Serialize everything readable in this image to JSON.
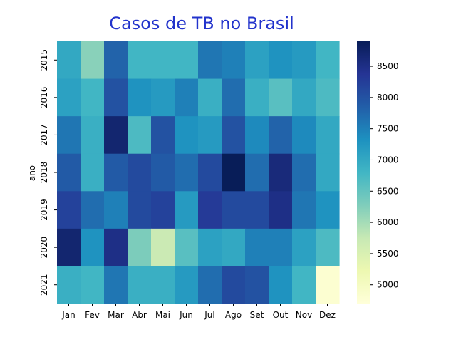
{
  "chart_data": {
    "type": "heatmap",
    "title": "Casos de TB no Brasil",
    "title_color": "#2233cc",
    "xlabel": "",
    "ylabel": "ano",
    "columns": [
      "Jan",
      "Fev",
      "Mar",
      "Abr",
      "Mai",
      "Jun",
      "Jul",
      "Ago",
      "Set",
      "Out",
      "Nov",
      "Dez"
    ],
    "rows": [
      "2015",
      "2016",
      "2017",
      "2018",
      "2019",
      "2020",
      "2021"
    ],
    "values": [
      [
        7000,
        6200,
        7800,
        6800,
        6800,
        6800,
        7600,
        7500,
        7100,
        7300,
        7200,
        6800
      ],
      [
        7100,
        6800,
        8000,
        7300,
        7200,
        7500,
        6900,
        7700,
        6900,
        6600,
        7000,
        6700
      ],
      [
        7600,
        6900,
        8700,
        6700,
        8000,
        7300,
        7200,
        8000,
        7400,
        7800,
        7400,
        7000
      ],
      [
        7900,
        6900,
        7900,
        8100,
        7900,
        7700,
        8100,
        8900,
        7700,
        8600,
        7700,
        7000
      ],
      [
        8200,
        7700,
        7500,
        8100,
        8200,
        7200,
        8300,
        8100,
        8100,
        8500,
        7600,
        7300
      ],
      [
        8700,
        7300,
        8500,
        6300,
        5700,
        6600,
        7100,
        7000,
        7500,
        7500,
        7100,
        6700
      ],
      [
        6900,
        6800,
        7600,
        6900,
        6900,
        7200,
        7700,
        8100,
        8000,
        7300,
        6800,
        4800
      ]
    ],
    "colorbar": {
      "min": 4700,
      "max": 8900,
      "ticks": [
        5000,
        5500,
        6000,
        6500,
        7000,
        7500,
        8000,
        8500
      ],
      "colormap": "YlGnBu",
      "stops": [
        "#ffffd9",
        "#edf8b1",
        "#c7e9b4",
        "#7fcdbb",
        "#41b6c4",
        "#1d91c0",
        "#225ea8",
        "#253494",
        "#081d58"
      ]
    }
  }
}
